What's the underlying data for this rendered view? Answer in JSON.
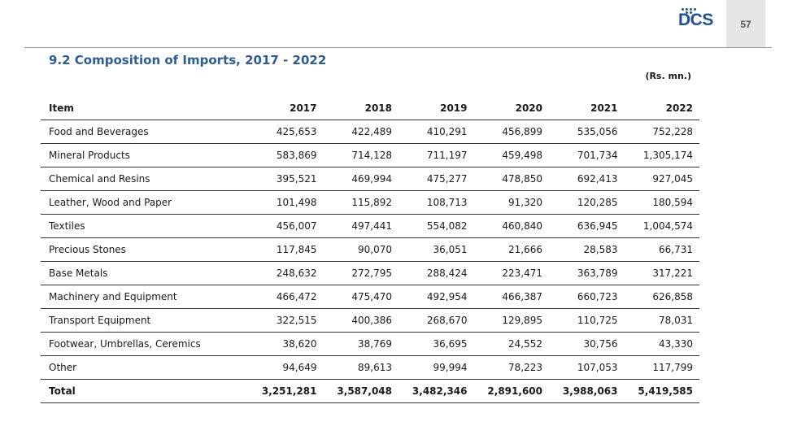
{
  "header": {
    "logo_text": "DCS",
    "page_number": "57",
    "brand_color": "#1f4e9a"
  },
  "title": "9.2 Composition of Imports, 2017 - 2022",
  "units": "(Rs. mn.)",
  "table": {
    "columns": [
      "Item",
      "2017",
      "2018",
      "2019",
      "2020",
      "2021",
      "2022"
    ],
    "rows": [
      [
        "Food and Beverages",
        "425,653",
        "422,489",
        "410,291",
        "456,899",
        "535,056",
        "752,228"
      ],
      [
        "Mineral Products",
        "583,869",
        "714,128",
        "711,197",
        "459,498",
        "701,734",
        "1,305,174"
      ],
      [
        "Chemical and Resins",
        "395,521",
        "469,994",
        "475,277",
        "478,850",
        "692,413",
        "927,045"
      ],
      [
        "Leather, Wood and Paper",
        "101,498",
        "115,892",
        "108,713",
        "91,320",
        "120,285",
        "180,594"
      ],
      [
        "Textiles",
        "456,007",
        "497,441",
        "554,082",
        "460,840",
        "636,945",
        "1,004,574"
      ],
      [
        "Precious Stones",
        "117,845",
        "90,070",
        "36,051",
        "21,666",
        "28,583",
        "66,731"
      ],
      [
        "Base Metals",
        "248,632",
        "272,795",
        "288,424",
        "223,471",
        "363,789",
        "317,221"
      ],
      [
        "Machinery and Equipment",
        "466,472",
        "475,470",
        "492,954",
        "466,387",
        "660,723",
        "626,858"
      ],
      [
        "Transport Equipment",
        "322,515",
        "400,386",
        "268,670",
        "129,895",
        "110,725",
        "78,031"
      ],
      [
        "Footwear, Umbrellas, Ceremics",
        "38,620",
        "38,769",
        "36,695",
        "24,552",
        "30,756",
        "43,330"
      ],
      [
        "Other",
        "94,649",
        "89,613",
        "99,994",
        "78,223",
        "107,053",
        "117,799"
      ]
    ],
    "total": [
      "Total",
      "3,251,281",
      "3,587,048",
      "3,482,346",
      "2,891,600",
      "3,988,063",
      "5,419,585"
    ]
  }
}
